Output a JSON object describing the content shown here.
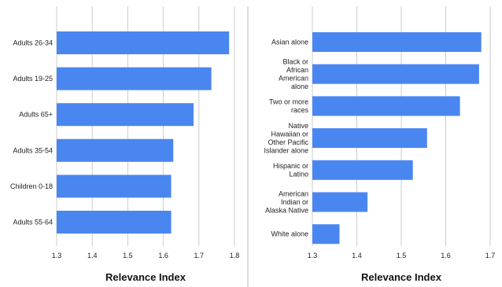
{
  "colors": {
    "bar": "#4a86f0",
    "grid": "#cccccc",
    "divider": "#bbbbbb"
  },
  "chart_data": [
    {
      "type": "bar",
      "orientation": "horizontal",
      "categories": [
        "Adults 26-34",
        "Adults 19-25",
        "Adults 65+",
        "Adults 35-54",
        "Children 0-18",
        "Adults 55-64"
      ],
      "values": [
        1.785,
        1.735,
        1.685,
        1.628,
        1.622,
        1.622
      ],
      "xlabel": "Relevance Index",
      "xlim": [
        1.3,
        1.8
      ],
      "xticks": [
        "1.3",
        "1.4",
        "1.5",
        "1.6",
        "1.7",
        "1.8"
      ],
      "grid": true
    },
    {
      "type": "bar",
      "orientation": "horizontal",
      "categories": [
        [
          "Asian alone"
        ],
        [
          "Black or",
          "African",
          "American",
          "alone"
        ],
        [
          "Two or more",
          "races"
        ],
        [
          "Native",
          "Hawaiian or",
          "Other Pacific",
          "Islander alone"
        ],
        [
          "Hispanic or",
          "Latino"
        ],
        [
          "American",
          "Indian or",
          "Alaska Native"
        ],
        [
          "White alone"
        ]
      ],
      "values": [
        1.68,
        1.675,
        1.632,
        1.558,
        1.526,
        1.424,
        1.361
      ],
      "xlabel": "Relevance Index",
      "xlim": [
        1.3,
        1.7
      ],
      "xticks": [
        "1.3",
        "1.4",
        "1.5",
        "1.6",
        "1.7"
      ],
      "grid": true
    }
  ]
}
